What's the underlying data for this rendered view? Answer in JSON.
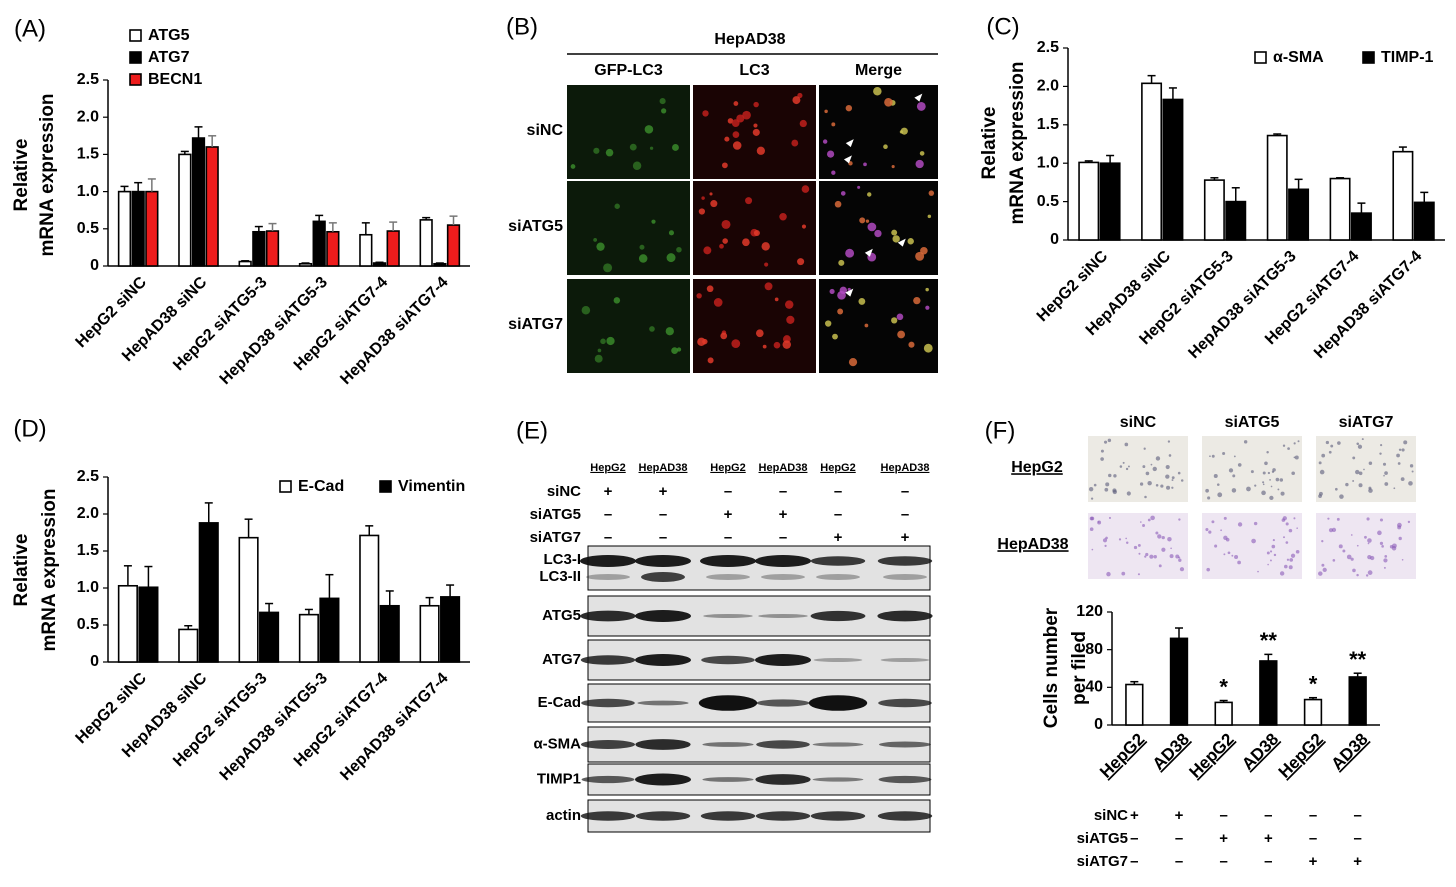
{
  "chart_data": [
    {
      "type": "bar",
      "panel_label": "(A)",
      "y_label": [
        "Relative",
        "mRNA expression"
      ],
      "categories": [
        "HepG2 siNC",
        "HepAD38 siNC",
        "HepG2 siATG5-3",
        "HepAD38 siATG5-3",
        "HepG2 siATG7-4",
        "HepAD38 siATG7-4"
      ],
      "series": [
        {
          "name": "ATG5",
          "color": "#ffffff",
          "values": [
            1.0,
            1.5,
            0.06,
            0.03,
            0.42,
            0.62
          ],
          "errors": [
            0.07,
            0.04,
            0.01,
            0.01,
            0.16,
            0.03
          ]
        },
        {
          "name": "ATG7",
          "color": "#000000",
          "values": [
            1.0,
            1.72,
            0.46,
            0.6,
            0.04,
            0.03
          ],
          "errors": [
            0.12,
            0.15,
            0.07,
            0.08,
            0.01,
            0.01
          ]
        },
        {
          "name": "BECN1",
          "color": "#ee1c1c",
          "values": [
            1.0,
            1.6,
            0.47,
            0.46,
            0.47,
            0.55
          ],
          "errors": [
            0.17,
            0.15,
            0.1,
            0.12,
            0.12,
            0.12
          ]
        }
      ],
      "ylim": [
        0,
        2.5
      ],
      "yticks": [
        0,
        0.5,
        {
          "value": 1,
          "label": "1.0"
        },
        1.5,
        {
          "value": 2,
          "label": "2.0"
        },
        2.5
      ],
      "legend": "upper left"
    },
    {
      "type": "bar",
      "panel_label": "(C)",
      "y_label": [
        "Relative",
        "mRNA expression"
      ],
      "categories": [
        "HepG2 siNC",
        "HepAD38 siNC",
        "HepG2 siATG5-3",
        "HepAD38 siATG5-3",
        "HepG2 siATG7-4",
        "HepAD38 siATG7-4"
      ],
      "series": [
        {
          "name": "α-SMA",
          "color": "#ffffff",
          "values": [
            1.01,
            2.04,
            0.78,
            1.36,
            0.8,
            1.15
          ],
          "errors": [
            0.02,
            0.1,
            0.03,
            0.02,
            0.01,
            0.06
          ]
        },
        {
          "name": "TIMP-1",
          "color": "#000000",
          "values": [
            1.0,
            1.83,
            0.5,
            0.66,
            0.35,
            0.49
          ],
          "errors": [
            0.1,
            0.15,
            0.18,
            0.13,
            0.13,
            0.13
          ]
        }
      ],
      "ylim": [
        0,
        2.5
      ],
      "yticks": [
        0,
        0.5,
        {
          "value": 1,
          "label": "1.0"
        },
        1.5,
        {
          "value": 2,
          "label": "2.0"
        },
        2.5
      ],
      "legend": "upper right"
    },
    {
      "type": "bar",
      "panel_label": "(D)",
      "y_label": [
        "Relative",
        "mRNA expression"
      ],
      "categories": [
        "HepG2 siNC",
        "HepAD38 siNC",
        "HepG2 siATG5-3",
        "HepAD38 siATG5-3",
        "HepG2 siATG7-4",
        "HepAD38 siATG7-4"
      ],
      "series": [
        {
          "name": "E-Cad",
          "color": "#ffffff",
          "values": [
            1.03,
            0.44,
            1.68,
            0.64,
            1.71,
            0.76
          ],
          "errors": [
            0.27,
            0.05,
            0.25,
            0.07,
            0.13,
            0.11
          ]
        },
        {
          "name": "Vimentin",
          "color": "#000000",
          "values": [
            1.01,
            1.88,
            0.67,
            0.86,
            0.76,
            0.88
          ],
          "errors": [
            0.28,
            0.27,
            0.12,
            0.32,
            0.2,
            0.16
          ]
        }
      ],
      "ylim": [
        0,
        2.5
      ],
      "yticks": [
        0,
        0.5,
        {
          "value": 1,
          "label": "1.0"
        },
        1.5,
        {
          "value": 2,
          "label": "2.0"
        },
        2.5
      ],
      "legend": "upper right"
    },
    {
      "type": "bar",
      "panel_label": "(F)",
      "y_label": [
        "Cells number",
        "per filed"
      ],
      "categories": [
        "HepG2",
        "AD38",
        "HepG2",
        "AD38",
        "HepG2",
        "AD38"
      ],
      "values": [
        43,
        92,
        24,
        68,
        27,
        51
      ],
      "errors": [
        3,
        11,
        2,
        7,
        2,
        4
      ],
      "colors": [
        "#ffffff",
        "#000000",
        "#ffffff",
        "#000000",
        "#ffffff",
        "#000000"
      ],
      "annotations": [
        null,
        null,
        "*",
        "**",
        "*",
        "**"
      ],
      "ylim": [
        0,
        120
      ],
      "yticks": [
        0,
        40,
        80,
        120
      ],
      "treatments": [
        {
          "label": "siNC",
          "marks": [
            "+",
            "+",
            "–",
            "–",
            "–",
            "–"
          ]
        },
        {
          "label": "siATG5",
          "marks": [
            "–",
            "–",
            "+",
            "+",
            "–",
            "–"
          ]
        },
        {
          "label": "siATG7",
          "marks": [
            "–",
            "–",
            "–",
            "–",
            "+",
            "+"
          ]
        }
      ]
    }
  ],
  "microscopy": {
    "panel_label": "(B)",
    "title": "HepAD38",
    "columns": [
      "GFP-LC3",
      "LC3",
      "Merge"
    ],
    "rows": [
      "siNC",
      "siATG5",
      "siATG7"
    ]
  },
  "western_blot": {
    "panel_label": "(E)",
    "lanes": [
      "HepG2",
      "HepAD38",
      "HepG2",
      "HepAD38",
      "HepG2",
      "HepAD38"
    ],
    "treatments": [
      {
        "label": "siNC",
        "marks": [
          "+",
          "+",
          "–",
          "–",
          "–",
          "–"
        ]
      },
      {
        "label": "siATG5",
        "marks": [
          "–",
          "–",
          "+",
          "+",
          "–",
          "–"
        ]
      },
      {
        "label": "siATG7",
        "marks": [
          "–",
          "–",
          "–",
          "–",
          "+",
          "+"
        ]
      }
    ],
    "blots": [
      [
        "LC3-I",
        "LC3-II"
      ],
      [
        "ATG5"
      ],
      [
        "ATG7"
      ],
      [
        "E-Cad"
      ],
      [
        "α-SMA"
      ],
      [
        "TIMP1"
      ],
      [
        "actin"
      ]
    ]
  },
  "invasion_images": {
    "columns": [
      "siNC",
      "siATG5",
      "siATG7"
    ],
    "rows": [
      "HepG2",
      "HepAD38"
    ]
  }
}
